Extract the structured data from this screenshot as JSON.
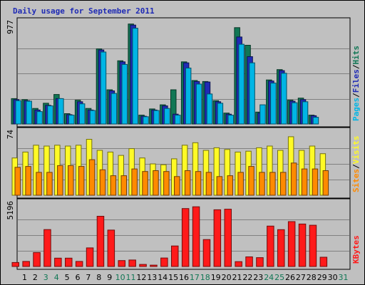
{
  "chart_data": {
    "title": "Daily usage for September 2011",
    "colors": {
      "hits": "#117755",
      "files": "#1f2bb5",
      "pages": "#00b5e5",
      "visits": "#fffa26",
      "sites": "#ff8a00",
      "kbytes": "#ff1a1a",
      "weekend_tick": "#117755",
      "weekday_tick": "#000000"
    },
    "days": [
      "1",
      "2",
      "3",
      "4",
      "5",
      "6",
      "7",
      "8",
      "9",
      "10",
      "11",
      "12",
      "13",
      "14",
      "15",
      "16",
      "17",
      "18",
      "19",
      "20",
      "21",
      "22",
      "23",
      "24",
      "25",
      "26",
      "27",
      "28",
      "29",
      "30",
      "31"
    ],
    "weekend_days": [
      3,
      4,
      10,
      11,
      17,
      18,
      24,
      25,
      31
    ],
    "panels": [
      {
        "type": "bar",
        "ymax_label": "977",
        "ylim": [
          0,
          977
        ],
        "legend": [
          {
            "text": "Pages",
            "color_key": "pages"
          },
          {
            "text": "/",
            "color_key": "sep"
          },
          {
            "text": "Files",
            "color_key": "files"
          },
          {
            "text": "/",
            "color_key": "sep"
          },
          {
            "text": "Hits",
            "color_key": "hits"
          }
        ],
        "series": [
          {
            "name": "Hits",
            "color_key": "hits",
            "values": [
              245,
              235,
              150,
              200,
              285,
              100,
              230,
              150,
              725,
              330,
              610,
              965,
              85,
              145,
              185,
              330,
              600,
              420,
              410,
              225,
              105,
              930,
              760,
              115,
              425,
              525,
              230,
              250,
              85,
              0,
              0
            ]
          },
          {
            "name": "Files",
            "color_key": "files",
            "values": [
              235,
              225,
              135,
              180,
              245,
              90,
              215,
              135,
              715,
              320,
              600,
              955,
              75,
              135,
              175,
              95,
              590,
              410,
              405,
              215,
              95,
              840,
              650,
              105,
              415,
              515,
              220,
              235,
              80,
              0,
              0
            ]
          },
          {
            "name": "Pages",
            "color_key": "pages",
            "values": [
              225,
              220,
              120,
              175,
              245,
              85,
              195,
              130,
              695,
              295,
              575,
              925,
              70,
              130,
              150,
              85,
              540,
              385,
              290,
              200,
              85,
              770,
              590,
              185,
              395,
              490,
              205,
              215,
              65,
              0,
              0
            ]
          }
        ]
      },
      {
        "type": "bar",
        "ymax_label": "74",
        "ylim": [
          0,
          74
        ],
        "legend": [
          {
            "text": "Sites",
            "color_key": "sites"
          },
          {
            "text": "/",
            "color_key": "sep"
          },
          {
            "text": "Visits",
            "color_key": "visits"
          }
        ],
        "series": [
          {
            "name": "Visits",
            "color_key": "visits",
            "values": [
              44,
              51,
              59,
              58,
              59,
              58,
              59,
              66,
              53,
              51,
              47,
              55,
              44,
              37,
              36,
              43,
              59,
              62,
              53,
              56,
              54,
              51,
              52,
              56,
              58,
              53,
              69,
              53,
              58,
              49,
              0
            ]
          },
          {
            "name": "Sites",
            "color_key": "sites",
            "values": [
              33,
              34,
              27,
              27,
              35,
              35,
              34,
              42,
              30,
              23,
              23,
              31,
              28,
              29,
              28,
              22,
              29,
              28,
              27,
              22,
              23,
              27,
              34,
              27,
              27,
              27,
              38,
              31,
              31,
              29,
              0
            ]
          }
        ]
      },
      {
        "type": "bar",
        "ymax_label": "5196",
        "ylim": [
          0,
          5196
        ],
        "legend": [
          {
            "text": "KBytes",
            "color_key": "kbytes"
          }
        ],
        "series": [
          {
            "name": "KBytes",
            "color_key": "kbytes",
            "values": [
              330,
              420,
              1160,
              3060,
              690,
              690,
              420,
              1540,
              4160,
              3020,
              490,
              540,
              170,
              110,
              700,
              1700,
              4800,
              4950,
              2230,
              4700,
              4750,
              400,
              800,
              730,
              3350,
              3050,
              3720,
              3520,
              3420,
              770,
              0
            ]
          }
        ]
      }
    ]
  }
}
